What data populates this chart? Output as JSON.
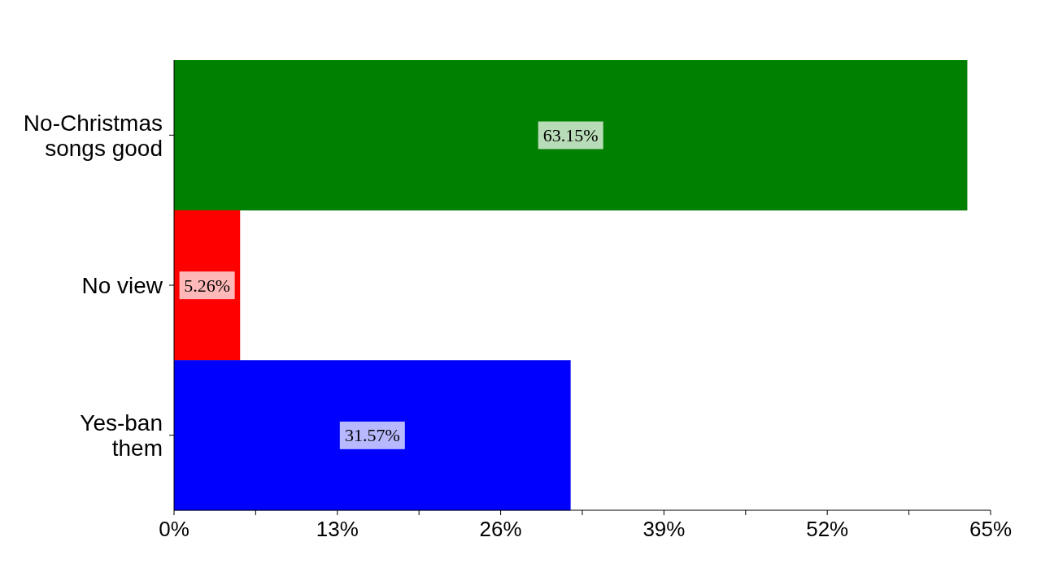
{
  "chart_data": {
    "type": "bar",
    "orientation": "horizontal",
    "categories": [
      "No-Christmas songs good",
      "No view",
      "Yes-ban them"
    ],
    "values": [
      63.15,
      5.26,
      31.57
    ],
    "colors": [
      "#008000",
      "#ff0000",
      "#0000ff"
    ],
    "value_labels": [
      "63.15%",
      "5.26%",
      "31.57%"
    ],
    "xlim": [
      0,
      65
    ],
    "xticks": [
      {
        "value": 0,
        "label": "0%"
      },
      {
        "value": 6.5,
        "label": null
      },
      {
        "value": 13,
        "label": "13%"
      },
      {
        "value": 19.5,
        "label": null
      },
      {
        "value": 26,
        "label": "26%"
      },
      {
        "value": 32.5,
        "label": null
      },
      {
        "value": 39,
        "label": "39%"
      },
      {
        "value": 45.5,
        "label": null
      },
      {
        "value": 52,
        "label": "52%"
      },
      {
        "value": 58.5,
        "label": null
      },
      {
        "value": 65,
        "label": "65%"
      }
    ],
    "grid": false,
    "legend": false
  }
}
